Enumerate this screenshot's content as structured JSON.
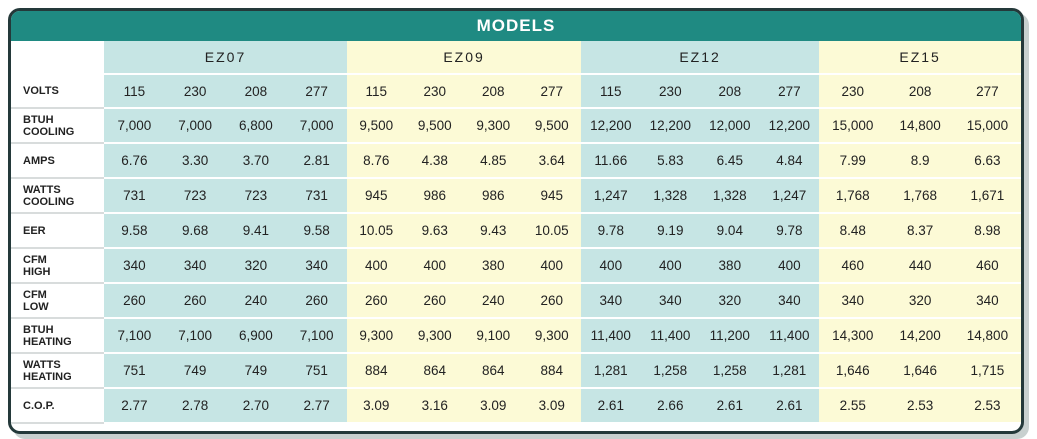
{
  "title": "MODELS",
  "volts_label": "VOLTS",
  "models": [
    {
      "name": "EZ07",
      "volts": [
        "115",
        "230",
        "208",
        "277"
      ]
    },
    {
      "name": "EZ09",
      "volts": [
        "115",
        "230",
        "208",
        "277"
      ]
    },
    {
      "name": "EZ12",
      "volts": [
        "115",
        "230",
        "208",
        "277"
      ]
    },
    {
      "name": "EZ15",
      "volts": [
        "230",
        "208",
        "277"
      ]
    }
  ],
  "rows": [
    {
      "label": "BTUH COOLING",
      "values": [
        "7,000",
        "7,000",
        "6,800",
        "7,000",
        "9,500",
        "9,500",
        "9,300",
        "9,500",
        "12,200",
        "12,200",
        "12,000",
        "12,200",
        "15,000",
        "14,800",
        "15,000"
      ]
    },
    {
      "label": "AMPS",
      "values": [
        "6.76",
        "3.30",
        "3.70",
        "2.81",
        "8.76",
        "4.38",
        "4.85",
        "3.64",
        "11.66",
        "5.83",
        "6.45",
        "4.84",
        "7.99",
        "8.9",
        "6.63"
      ]
    },
    {
      "label": "WATTS COOLING",
      "values": [
        "731",
        "723",
        "723",
        "731",
        "945",
        "986",
        "986",
        "945",
        "1,247",
        "1,328",
        "1,328",
        "1,247",
        "1,768",
        "1,768",
        "1,671"
      ]
    },
    {
      "label": "EER",
      "values": [
        "9.58",
        "9.68",
        "9.41",
        "9.58",
        "10.05",
        "9.63",
        "9.43",
        "10.05",
        "9.78",
        "9.19",
        "9.04",
        "9.78",
        "8.48",
        "8.37",
        "8.98"
      ]
    },
    {
      "label": "CFM HIGH",
      "values": [
        "340",
        "340",
        "320",
        "340",
        "400",
        "400",
        "380",
        "400",
        "400",
        "400",
        "380",
        "400",
        "460",
        "440",
        "460"
      ]
    },
    {
      "label": "CFM LOW",
      "values": [
        "260",
        "260",
        "240",
        "260",
        "260",
        "260",
        "240",
        "260",
        "340",
        "340",
        "320",
        "340",
        "340",
        "320",
        "340"
      ]
    },
    {
      "label": "BTUH HEATING",
      "values": [
        "7,100",
        "7,100",
        "6,900",
        "7,100",
        "9,300",
        "9,300",
        "9,100",
        "9,300",
        "11,400",
        "11,400",
        "11,200",
        "11,400",
        "14,300",
        "14,200",
        "14,800"
      ]
    },
    {
      "label": "WATTS HEATING",
      "values": [
        "751",
        "749",
        "749",
        "751",
        "884",
        "864",
        "864",
        "884",
        "1,281",
        "1,258",
        "1,258",
        "1,281",
        "1,646",
        "1,646",
        "1,715"
      ]
    },
    {
      "label": "C.O.P.",
      "values": [
        "2.77",
        "2.78",
        "2.70",
        "2.77",
        "3.09",
        "3.16",
        "3.09",
        "3.09",
        "2.61",
        "2.66",
        "2.61",
        "2.61",
        "2.55",
        "2.53",
        "2.53"
      ]
    }
  ]
}
